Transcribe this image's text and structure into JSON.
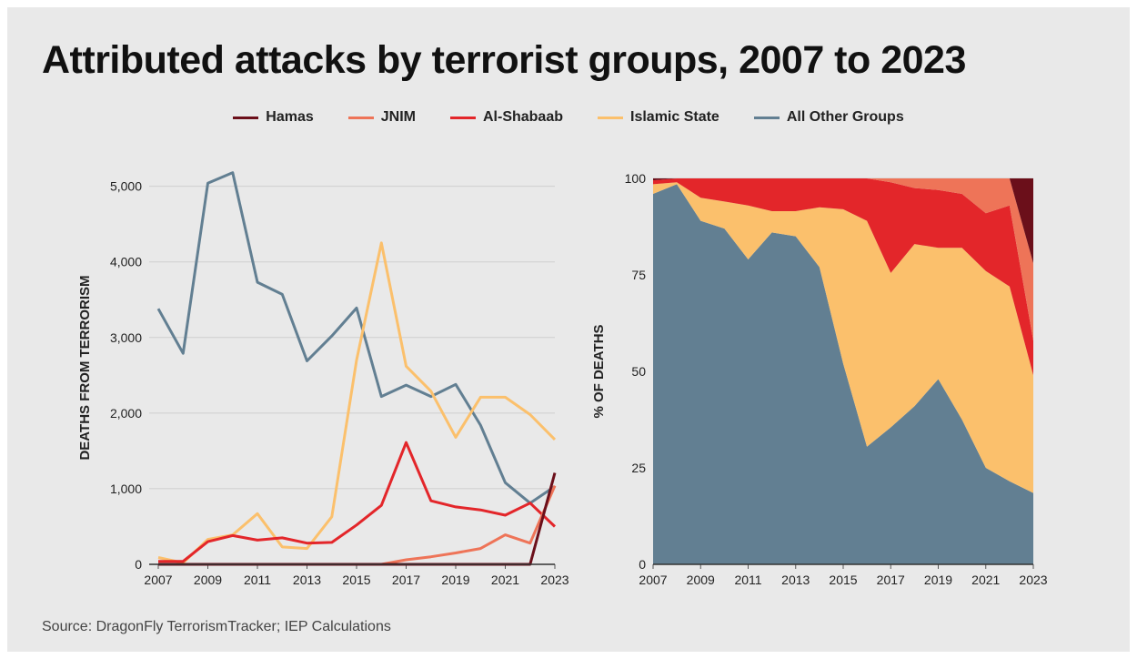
{
  "title": "Attributed attacks by terrorist groups, 2007 to 2023",
  "source": "Source: DragonFly TerrorismTracker; IEP Calculations",
  "legend": [
    {
      "label": "Hamas",
      "color": "#6b0f1a"
    },
    {
      "label": "JNIM",
      "color": "#ee7458"
    },
    {
      "label": "Al-Shabaab",
      "color": "#e3262a"
    },
    {
      "label": "Islamic State",
      "color": "#fbc06c"
    },
    {
      "label": "All Other Groups",
      "color": "#627f92"
    }
  ],
  "chart_data": [
    {
      "type": "line",
      "ylabel": "DEATHS FROM TERRORISM",
      "xlabel": "",
      "x": [
        2007,
        2008,
        2009,
        2010,
        2011,
        2012,
        2013,
        2014,
        2015,
        2016,
        2017,
        2018,
        2019,
        2020,
        2021,
        2022,
        2023
      ],
      "x_ticks": [
        "2007",
        "2009",
        "2011",
        "2013",
        "2015",
        "2017",
        "2019",
        "2021",
        "2023"
      ],
      "ylim": [
        0,
        5200
      ],
      "y_ticks": [
        "0",
        "1,000",
        "2,000",
        "3,000",
        "4,000",
        "5,000"
      ],
      "grid": true,
      "series": [
        {
          "name": "All Other Groups",
          "color": "#627f92",
          "values": [
            3380,
            2790,
            5040,
            5180,
            3730,
            3570,
            2690,
            3020,
            3390,
            2220,
            2370,
            2220,
            2380,
            1840,
            1080,
            810,
            1030
          ]
        },
        {
          "name": "Islamic State",
          "color": "#fbc06c",
          "values": [
            90,
            20,
            330,
            390,
            670,
            230,
            210,
            630,
            2700,
            4250,
            2620,
            2290,
            1680,
            2210,
            2210,
            1980,
            1650
          ]
        },
        {
          "name": "Al-Shabaab",
          "color": "#e3262a",
          "values": [
            40,
            40,
            300,
            380,
            320,
            350,
            280,
            290,
            520,
            780,
            1610,
            840,
            760,
            720,
            650,
            810,
            500
          ]
        },
        {
          "name": "JNIM",
          "color": "#ee7458",
          "values": [
            0,
            0,
            0,
            0,
            0,
            0,
            0,
            0,
            0,
            0,
            60,
            100,
            150,
            210,
            390,
            280,
            1040
          ]
        },
        {
          "name": "Hamas",
          "color": "#6b0f1a",
          "values": [
            0,
            0,
            0,
            0,
            0,
            0,
            0,
            0,
            0,
            0,
            0,
            0,
            0,
            0,
            0,
            0,
            1210
          ]
        }
      ]
    },
    {
      "type": "area",
      "stacked": true,
      "ylabel": "% OF DEATHS",
      "xlabel": "",
      "x": [
        2007,
        2008,
        2009,
        2010,
        2011,
        2012,
        2013,
        2014,
        2015,
        2016,
        2017,
        2018,
        2019,
        2020,
        2021,
        2022,
        2023
      ],
      "x_ticks": [
        "2007",
        "2009",
        "2011",
        "2013",
        "2015",
        "2017",
        "2019",
        "2021",
        "2023"
      ],
      "ylim": [
        0,
        100
      ],
      "y_ticks": [
        "0",
        "25",
        "50",
        "75",
        "100"
      ],
      "grid": true,
      "series": [
        {
          "name": "All Other Groups",
          "color": "#627f92",
          "values": [
            96,
            98.5,
            89,
            87,
            79,
            86,
            85,
            77,
            52,
            30.5,
            35.5,
            41,
            48,
            37.5,
            25,
            21.5,
            18.5
          ]
        },
        {
          "name": "Islamic State",
          "color": "#fbc06c",
          "values": [
            2.5,
            0.5,
            6,
            7,
            14,
            5.5,
            6.5,
            15.5,
            40,
            58.5,
            40,
            42,
            34,
            44.5,
            51,
            50.5,
            30.5
          ]
        },
        {
          "name": "Al-Shabaab",
          "color": "#e3262a",
          "values": [
            1,
            1,
            5,
            6,
            7,
            8.5,
            8.5,
            7.5,
            8,
            11,
            23.5,
            14.5,
            15,
            14,
            15,
            21,
            9
          ]
        },
        {
          "name": "JNIM",
          "color": "#ee7458",
          "values": [
            0,
            0,
            0,
            0,
            0,
            0,
            0,
            0,
            0,
            0,
            1,
            2.5,
            3,
            4,
            9,
            7,
            20
          ]
        },
        {
          "name": "Hamas",
          "color": "#6b0f1a",
          "values": [
            0.5,
            0,
            0,
            0,
            0,
            0,
            0,
            0,
            0,
            0,
            0,
            0,
            0,
            0,
            0,
            0,
            22
          ]
        }
      ]
    }
  ]
}
